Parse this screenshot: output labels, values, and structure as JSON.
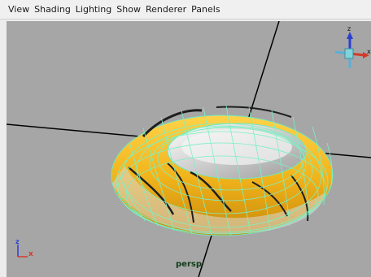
{
  "menu": {
    "items": [
      "View",
      "Shading",
      "Lighting",
      "Show",
      "Renderer",
      "Panels"
    ]
  },
  "viewport": {
    "camera_label": "persp",
    "background_color": "#a6a6a6",
    "object": "torus",
    "wireframe_color": "#7cf0c4",
    "surface_color": "#f2b51c"
  },
  "view_cube": {
    "axis_up_label": "z",
    "axis_right_label": "x"
  },
  "axis_gizmo": {
    "z_label": "z",
    "x_label": "x"
  }
}
